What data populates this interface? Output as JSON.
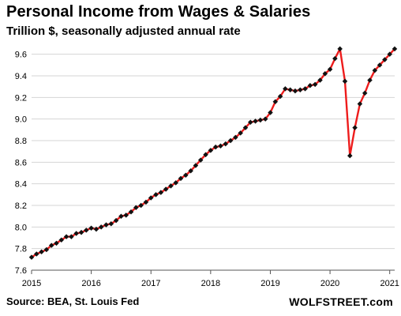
{
  "title": "Personal Income from Wages & Salaries",
  "subtitle": "Trillion $, seasonally adjusted annual rate",
  "source": "Source: BEA, St. Louis Fed",
  "brand": "WOLFSTREET.com",
  "chart_data": {
    "type": "line",
    "title": "Personal Income from Wages & Salaries",
    "subtitle": "Trillion $, seasonally adjusted annual rate",
    "xlabel": "",
    "ylabel": "",
    "x_ticks": [
      "2015",
      "2016",
      "2017",
      "2018",
      "2019",
      "2020",
      "2021"
    ],
    "y_ticks": [
      "7.6",
      "7.8",
      "8.0",
      "8.2",
      "8.4",
      "8.6",
      "8.8",
      "9.0",
      "9.2",
      "9.4",
      "9.6"
    ],
    "xlim": [
      "2015-01",
      "2021-02"
    ],
    "ylim": [
      7.6,
      9.7
    ],
    "grid": "horizontal",
    "colors": {
      "line": "#ee1c1c",
      "marker": "#111111",
      "grid": "#d4d4d4"
    },
    "series": [
      {
        "x": [
          "2015-01",
          "2015-02",
          "2015-03",
          "2015-04",
          "2015-05",
          "2015-06",
          "2015-07",
          "2015-08",
          "2015-09",
          "2015-10",
          "2015-11",
          "2015-12",
          "2016-01",
          "2016-02",
          "2016-03",
          "2016-04",
          "2016-05",
          "2016-06",
          "2016-07",
          "2016-08",
          "2016-09",
          "2016-10",
          "2016-11",
          "2016-12",
          "2017-01",
          "2017-02",
          "2017-03",
          "2017-04",
          "2017-05",
          "2017-06",
          "2017-07",
          "2017-08",
          "2017-09",
          "2017-10",
          "2017-11",
          "2017-12",
          "2018-01",
          "2018-02",
          "2018-03",
          "2018-04",
          "2018-05",
          "2018-06",
          "2018-07",
          "2018-08",
          "2018-09",
          "2018-10",
          "2018-11",
          "2018-12",
          "2019-01",
          "2019-02",
          "2019-03",
          "2019-04",
          "2019-05",
          "2019-06",
          "2019-07",
          "2019-08",
          "2019-09",
          "2019-10",
          "2019-11",
          "2019-12",
          "2020-01",
          "2020-02",
          "2020-03",
          "2020-04",
          "2020-05",
          "2020-06",
          "2020-07",
          "2020-08",
          "2020-09",
          "2020-10",
          "2020-11",
          "2020-12",
          "2021-01",
          "2021-02"
        ],
        "values": [
          7.72,
          7.75,
          7.77,
          7.79,
          7.83,
          7.85,
          7.88,
          7.91,
          7.91,
          7.94,
          7.95,
          7.97,
          7.99,
          7.98,
          8.0,
          8.02,
          8.03,
          8.06,
          8.1,
          8.11,
          8.14,
          8.18,
          8.2,
          8.23,
          8.27,
          8.3,
          8.32,
          8.35,
          8.38,
          8.41,
          8.45,
          8.48,
          8.52,
          8.57,
          8.62,
          8.67,
          8.71,
          8.74,
          8.75,
          8.77,
          8.8,
          8.83,
          8.87,
          8.92,
          8.97,
          8.98,
          8.99,
          9.0,
          9.06,
          9.16,
          9.21,
          9.28,
          9.27,
          9.26,
          9.27,
          9.28,
          9.31,
          9.32,
          9.36,
          9.42,
          9.46,
          9.56,
          9.65,
          9.35,
          8.66,
          8.92,
          9.14,
          9.24,
          9.36,
          9.45,
          9.5,
          9.55,
          9.6,
          9.65
        ]
      }
    ]
  }
}
